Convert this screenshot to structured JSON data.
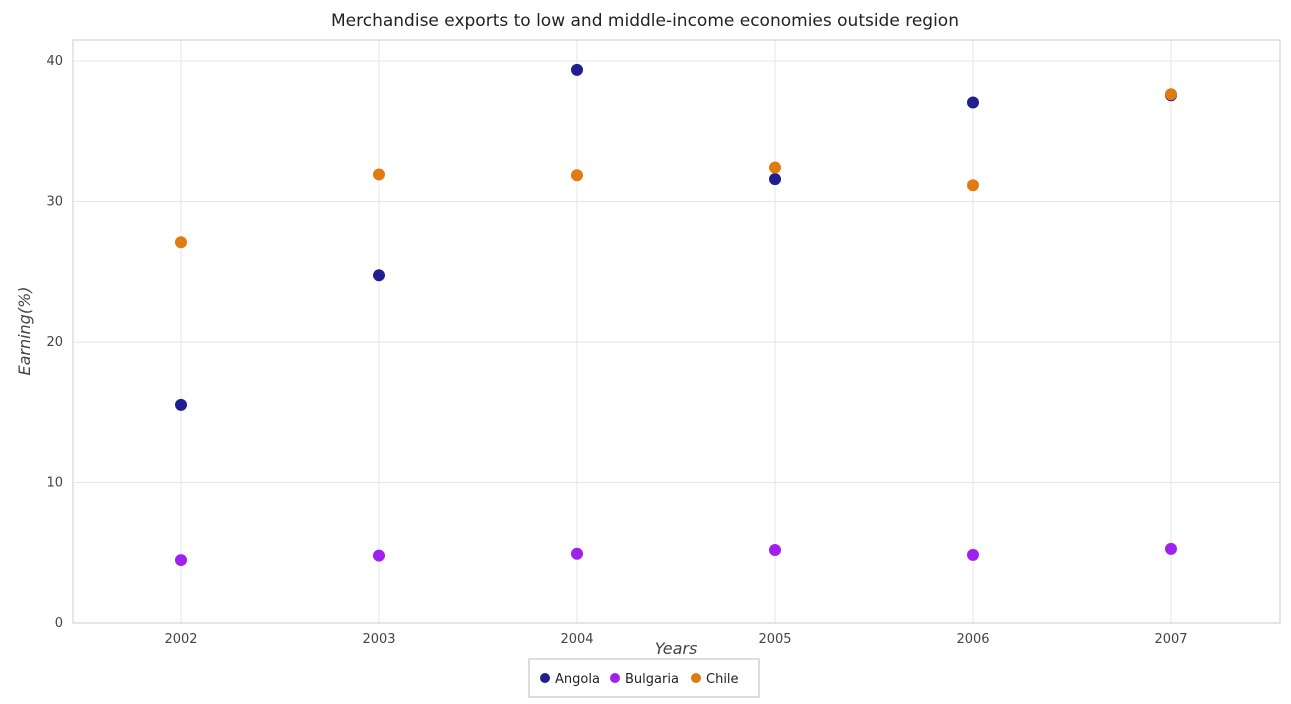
{
  "chart_data": {
    "type": "scatter",
    "title": "Merchandise exports to low and middle-income economies outside region",
    "xlabel": "Years",
    "ylabel": "Earning(%)",
    "categories": [
      "2002",
      "2003",
      "2004",
      "2005",
      "2006",
      "2007"
    ],
    "ylim": [
      0,
      41.5
    ],
    "yticks": [
      "0",
      "10",
      "20",
      "30",
      "40"
    ],
    "grid": true,
    "legend_position": "bottom-center",
    "series": [
      {
        "name": "Angola",
        "color": "#1f1f8f",
        "values": [
          15.53,
          24.75,
          39.37,
          31.6,
          37.05,
          37.57
        ]
      },
      {
        "name": "Bulgaria",
        "color": "#a020f0",
        "values": [
          4.48,
          4.8,
          4.93,
          5.2,
          4.85,
          5.28
        ]
      },
      {
        "name": "Chile",
        "color": "#e07b10",
        "values": [
          27.1,
          31.93,
          31.87,
          32.42,
          31.16,
          37.64
        ]
      }
    ]
  }
}
